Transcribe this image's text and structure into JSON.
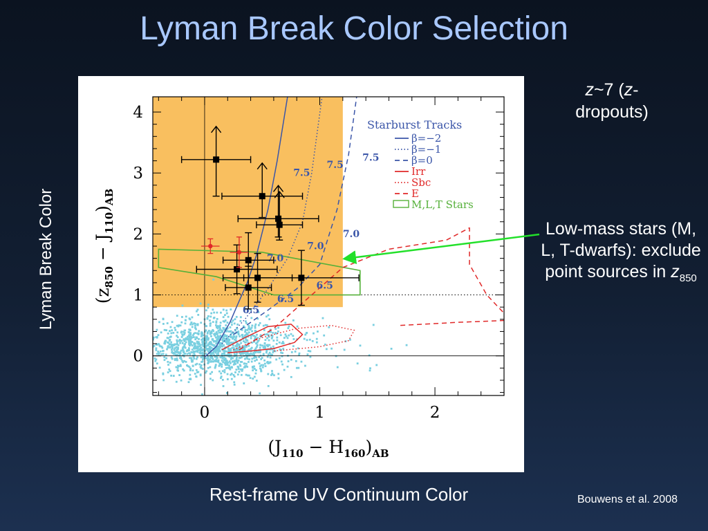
{
  "slide": {
    "title": "Lyman Break Color Selection",
    "y_side_label": "Lyman Break Color",
    "x_side_label": "Rest-frame UV Continuum Color",
    "z_label_z": "z",
    "z_label_rest": "~7 (",
    "z_label_z2": "z",
    "z_label_end": "-dropouts)",
    "lowmass_text": "Low-mass stars (M, L, T-dwarfs): exclude point sources in ",
    "lowmass_z": "z",
    "lowmass_sub": "850",
    "citation": "Bouwens et al. 2008",
    "arrow_color": "#22e02a"
  },
  "chart_data": {
    "type": "scatter",
    "xlabel_parts": [
      "(J",
      "110",
      " − H",
      "160",
      ")",
      "AB"
    ],
    "ylabel_parts": [
      "(z",
      "850",
      " − J",
      "110",
      ")",
      "AB"
    ],
    "xlim": [
      -0.45,
      2.6
    ],
    "ylim": [
      -0.65,
      4.25
    ],
    "xticks": [
      0,
      1,
      2
    ],
    "yticks": [
      0,
      1,
      2,
      3,
      4
    ],
    "colors": {
      "selection": "#f9bf5f",
      "field": "#79cfe0",
      "beta": "#3a55a8",
      "irr": "#e02828",
      "star": "#55b039",
      "axis": "#000000"
    },
    "selection_region": {
      "x_max": 1.2,
      "y_min": 0.8
    },
    "legend": {
      "title": "Starburst Tracks",
      "position": "top-right",
      "entries": [
        {
          "label": "β=−2",
          "style": "solid",
          "color": "#3a55a8"
        },
        {
          "label": "β=−1",
          "style": "dotted",
          "color": "#3a55a8"
        },
        {
          "label": "β=0",
          "style": "dashed",
          "color": "#3a55a8"
        },
        {
          "label": "Irr",
          "style": "solid",
          "color": "#e02828"
        },
        {
          "label": "Sbc",
          "style": "dotted",
          "color": "#e02828"
        },
        {
          "label": "E",
          "style": "dashed",
          "color": "#e02828"
        },
        {
          "label": "M,L,T Stars",
          "style": "box",
          "color": "#55b039"
        }
      ]
    },
    "tracks": [
      {
        "style": "solid",
        "color": "#3a55a8",
        "points": [
          [
            0.0,
            -0.02
          ],
          [
            0.1,
            0.15
          ],
          [
            0.22,
            0.55
          ],
          [
            0.3,
            0.9
          ],
          [
            0.37,
            1.2
          ],
          [
            0.45,
            1.65
          ],
          [
            0.55,
            2.4
          ],
          [
            0.63,
            3.2
          ],
          [
            0.72,
            4.25
          ]
        ]
      },
      {
        "style": "dotted",
        "color": "#3a55a8",
        "points": [
          [
            0.15,
            0.2
          ],
          [
            0.35,
            0.6
          ],
          [
            0.55,
            1.1
          ],
          [
            0.72,
            1.6
          ],
          [
            0.85,
            2.2
          ],
          [
            0.93,
            3.0
          ],
          [
            0.98,
            3.7
          ],
          [
            1.02,
            4.25
          ]
        ]
      },
      {
        "style": "dashed",
        "color": "#3a55a8",
        "points": [
          [
            0.25,
            0.35
          ],
          [
            0.55,
            0.75
          ],
          [
            0.8,
            1.1
          ],
          [
            1.0,
            1.5
          ],
          [
            1.15,
            2.4
          ],
          [
            1.25,
            3.3
          ],
          [
            1.32,
            4.25
          ]
        ]
      }
    ],
    "track_labels": [
      {
        "text": "7.5",
        "x": 0.77,
        "y": 2.95
      },
      {
        "text": "7.5",
        "x": 1.06,
        "y": 3.08
      },
      {
        "text": "7.5",
        "x": 1.37,
        "y": 3.2
      },
      {
        "text": "7.0",
        "x": 0.54,
        "y": 1.55
      },
      {
        "text": "7.0",
        "x": 0.89,
        "y": 1.75
      },
      {
        "text": "7.0",
        "x": 1.2,
        "y": 1.95
      },
      {
        "text": "6.5",
        "x": 0.33,
        "y": 0.7
      },
      {
        "text": "6.5",
        "x": 0.63,
        "y": 0.88
      },
      {
        "text": "6.5",
        "x": 0.97,
        "y": 1.1
      }
    ],
    "galaxy_tracks": [
      {
        "style": "solid",
        "color": "#e02828",
        "points": [
          [
            0.15,
            0.1
          ],
          [
            0.35,
            0.3
          ],
          [
            0.55,
            0.48
          ],
          [
            0.75,
            0.52
          ],
          [
            0.85,
            0.35
          ],
          [
            0.78,
            0.22
          ],
          [
            0.6,
            0.12
          ],
          [
            0.4,
            0.08
          ],
          [
            0.2,
            0.05
          ]
        ]
      },
      {
        "style": "dotted",
        "color": "#e02828",
        "points": [
          [
            0.25,
            0.1
          ],
          [
            0.5,
            0.3
          ],
          [
            0.8,
            0.45
          ],
          [
            1.1,
            0.5
          ],
          [
            1.3,
            0.42
          ],
          [
            1.25,
            0.25
          ],
          [
            1.0,
            0.15
          ],
          [
            0.6,
            0.08
          ]
        ]
      },
      {
        "style": "dashed",
        "color": "#e02828",
        "points": [
          [
            0.3,
            0.1
          ],
          [
            0.6,
            0.45
          ],
          [
            0.9,
            0.95
          ],
          [
            1.2,
            1.45
          ],
          [
            1.6,
            1.75
          ],
          [
            2.1,
            1.9
          ],
          [
            2.3,
            2.1
          ],
          [
            2.3,
            1.5
          ],
          [
            2.45,
            1.0
          ],
          [
            2.6,
            0.7
          ]
        ]
      }
    ],
    "extra_red_dashed": [
      [
        1.7,
        0.5
      ],
      [
        2.2,
        0.55
      ],
      [
        2.6,
        0.58
      ]
    ],
    "star_region": [
      [
        -0.4,
        1.75
      ],
      [
        0.5,
        1.7
      ],
      [
        1.35,
        1.4
      ],
      [
        1.35,
        1.0
      ],
      [
        1.0,
        1.0
      ],
      [
        0.6,
        1.0
      ],
      [
        0.1,
        1.3
      ],
      [
        -0.4,
        1.45
      ]
    ],
    "criteria_line": {
      "y": 1.0,
      "style": "dotted"
    },
    "candidates": [
      {
        "x": 0.1,
        "y": 3.22,
        "xerr": 0.3,
        "yerr_low": 0.6,
        "lower_limit": true
      },
      {
        "x": 0.5,
        "y": 2.62,
        "xerr": 0.35,
        "yerr_low": 0.35,
        "lower_limit": true
      },
      {
        "x": 0.64,
        "y": 2.25,
        "xerr": 0.35,
        "yerr_low": 0.3,
        "lower_limit": true
      },
      {
        "x": 0.65,
        "y": 2.15,
        "xerr": 0.2,
        "yerr_low": 0.25,
        "lower_limit": true
      },
      {
        "x": 0.38,
        "y": 1.57,
        "xerr": 0.22,
        "yerr_low": 0.45,
        "lower_limit": false
      },
      {
        "x": 0.28,
        "y": 1.42,
        "xerr": 0.35,
        "yerr_low": 0.4,
        "lower_limit": false
      },
      {
        "x": 0.46,
        "y": 1.28,
        "xerr": 0.3,
        "yerr_low": 0.4,
        "lower_limit": false
      },
      {
        "x": 0.38,
        "y": 1.12,
        "xerr": 0.2,
        "yerr_low": 0.35,
        "lower_limit": false
      },
      {
        "x": 0.84,
        "y": 1.28,
        "xerr": 0.5,
        "yerr_low": 0.45,
        "lower_limit": false
      }
    ],
    "red_candidates": [
      {
        "x": 0.05,
        "y": 1.8,
        "xerr": 0.08,
        "yerr": 0.12
      },
      {
        "x": 0.3,
        "y": 1.7,
        "xerr": 0.08,
        "yerr": 0.25
      }
    ],
    "field_cloud": {
      "n": 1400,
      "x_center": 0.1,
      "y_center": 0.15,
      "x_sd": 0.3,
      "y_sd": 0.22
    }
  }
}
